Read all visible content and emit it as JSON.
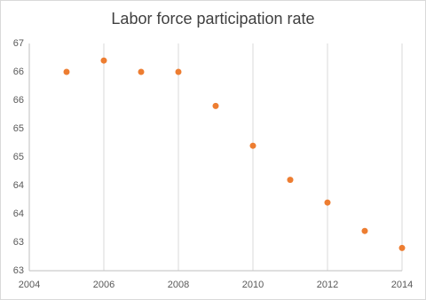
{
  "chart_data": {
    "type": "scatter",
    "title": "Labor force participation rate",
    "x": [
      2005,
      2006,
      2007,
      2008,
      2009,
      2010,
      2011,
      2012,
      2013,
      2014
    ],
    "values": [
      66.0,
      66.2,
      66.0,
      66.0,
      65.4,
      64.7,
      64.1,
      63.7,
      63.2,
      62.9
    ],
    "color": "#ed7d31",
    "xlim": [
      2004,
      2014
    ],
    "xticks": [
      2004,
      2006,
      2008,
      2010,
      2012,
      2014
    ],
    "ylim": [
      62.5,
      66.5
    ],
    "yticks": [
      {
        "value": 62.5,
        "label": "63"
      },
      63,
      {
        "value": 63.5,
        "label": "64"
      },
      64,
      {
        "value": 64.5,
        "label": "65"
      },
      65,
      {
        "value": 65.5,
        "label": "66"
      },
      66,
      {
        "value": 66.5,
        "label": "67"
      }
    ],
    "grid": "x"
  }
}
